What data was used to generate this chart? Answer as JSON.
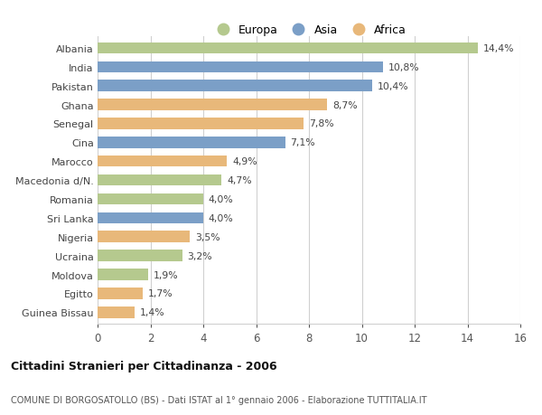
{
  "countries": [
    "Albania",
    "India",
    "Pakistan",
    "Ghana",
    "Senegal",
    "Cina",
    "Marocco",
    "Macedonia d/N.",
    "Romania",
    "Sri Lanka",
    "Nigeria",
    "Ucraina",
    "Moldova",
    "Egitto",
    "Guinea Bissau"
  ],
  "values": [
    14.4,
    10.8,
    10.4,
    8.7,
    7.8,
    7.1,
    4.9,
    4.7,
    4.0,
    4.0,
    3.5,
    3.2,
    1.9,
    1.7,
    1.4
  ],
  "continents": [
    "Europa",
    "Asia",
    "Asia",
    "Africa",
    "Africa",
    "Asia",
    "Africa",
    "Europa",
    "Europa",
    "Asia",
    "Africa",
    "Europa",
    "Europa",
    "Africa",
    "Africa"
  ],
  "colors": {
    "Europa": "#b5c98e",
    "Asia": "#7b9fc7",
    "Africa": "#e8b87a"
  },
  "legend_labels": [
    "Europa",
    "Asia",
    "Africa"
  ],
  "title1": "Cittadini Stranieri per Cittadinanza - 2006",
  "title2": "COMUNE DI BORGOSATOLLO (BS) - Dati ISTAT al 1° gennaio 2006 - Elaborazione TUTTITALIA.IT",
  "xlim": [
    0,
    16
  ],
  "xticks": [
    0,
    2,
    4,
    6,
    8,
    10,
    12,
    14,
    16
  ],
  "background_color": "#ffffff",
  "grid_color": "#d0d0d0",
  "bar_height": 0.6
}
